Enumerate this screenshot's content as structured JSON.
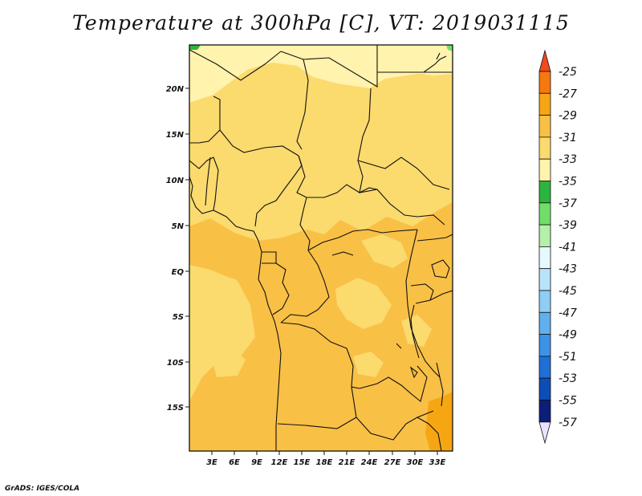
{
  "title": "Temperature at 300hPa [C], VT: 2019031115",
  "credit": "GrADS: IGES/COLA",
  "map": {
    "lat_labels": [
      "20N",
      "15N",
      "10N",
      "5N",
      "EQ",
      "5S",
      "10S",
      "15S"
    ],
    "lon_labels": [
      "3E",
      "6E",
      "9E",
      "12E",
      "15E",
      "18E",
      "21E",
      "24E",
      "27E",
      "30E",
      "33E"
    ],
    "lat_range": [
      "20S",
      "25N"
    ],
    "lon_range": [
      "0E",
      "35E"
    ]
  },
  "colorbar": {
    "labels": [
      "-25",
      "-27",
      "-29",
      "-31",
      "-33",
      "-35",
      "-37",
      "-39",
      "-41",
      "-43",
      "-45",
      "-47",
      "-49",
      "-51",
      "-53",
      "-55",
      "-57"
    ],
    "colors": [
      "#f24a1c",
      "#f57810",
      "#f7a613",
      "#f9c046",
      "#fbda6e",
      "#fff3ad",
      "#2bb53e",
      "#72de6a",
      "#b3f0a8",
      "#e6f9ff",
      "#b8e3fb",
      "#8fcdf5",
      "#60b0ee",
      "#3e92e6",
      "#1f6fd6",
      "#0d4db6",
      "#0b1e78",
      "#e8e4ff"
    ]
  }
}
